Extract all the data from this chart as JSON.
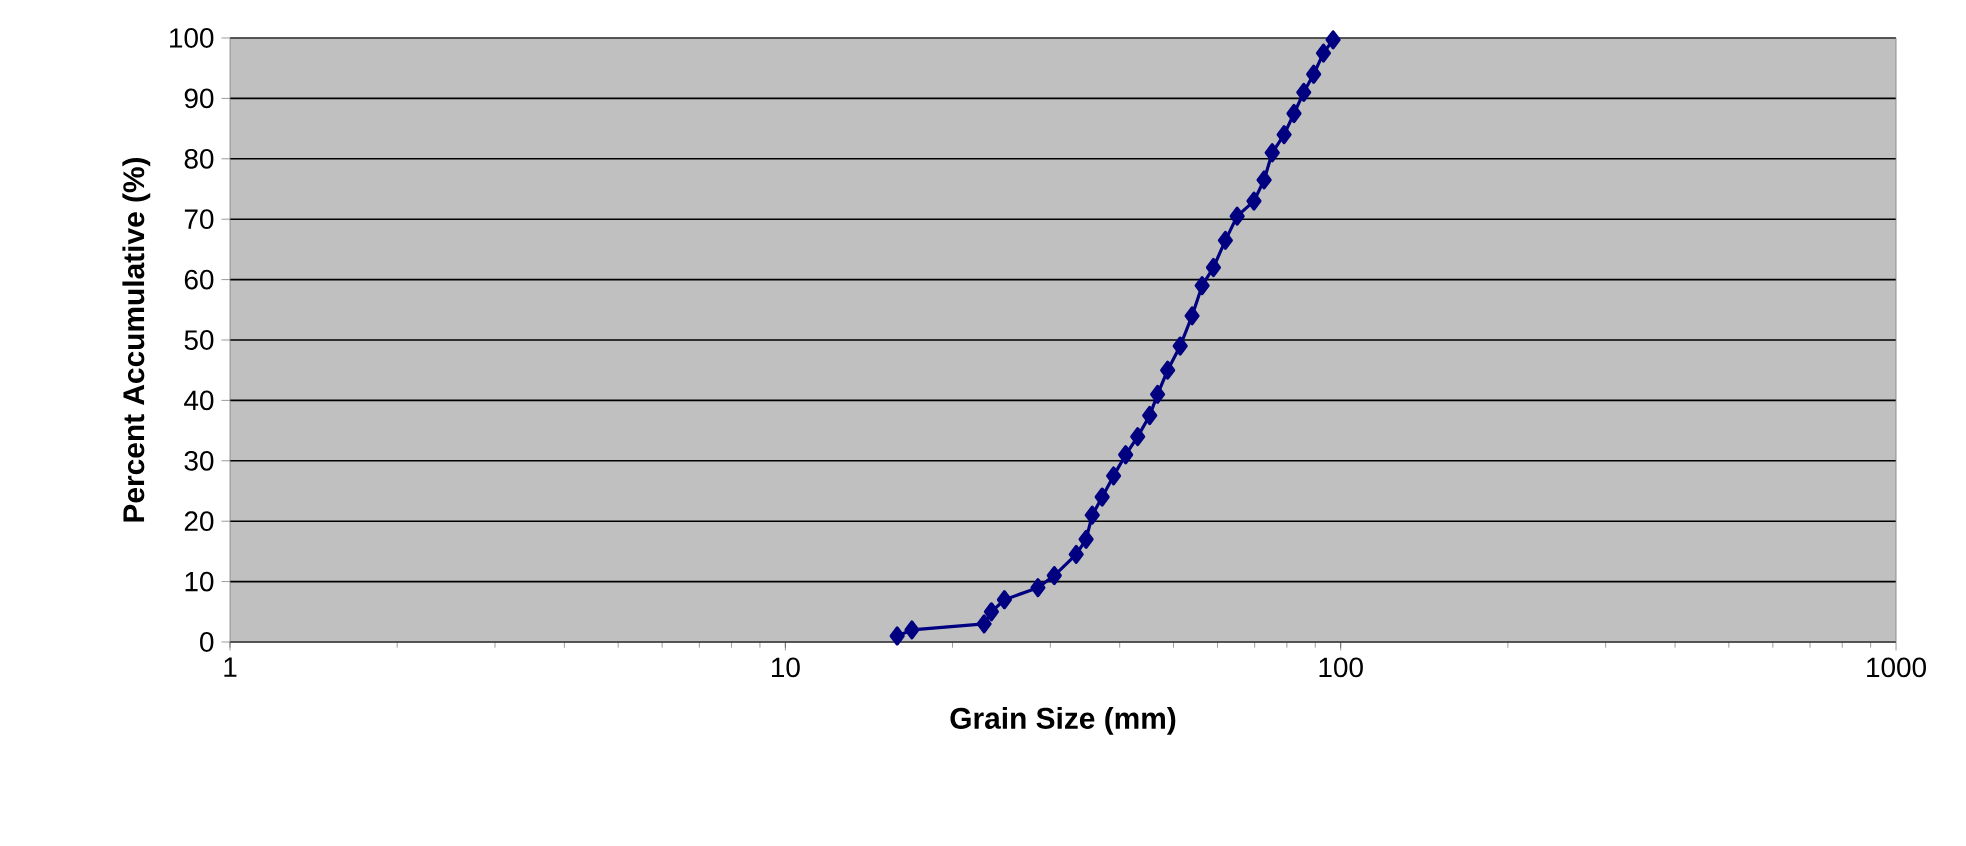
{
  "chart_data": {
    "type": "line",
    "xlabel": "Grain Size (mm)",
    "ylabel": "Percent Accumulative (%)",
    "series": [
      {
        "color": "#000080",
        "x": [
          15.9,
          16.9,
          22.8,
          23.5,
          24.8,
          28.5,
          30.5,
          33.4,
          34.8,
          35.7,
          37.2,
          39.0,
          41.0,
          43.1,
          45.3,
          46.8,
          48.8,
          51.4,
          54.0,
          56.3,
          59.0,
          62.0,
          65.1,
          69.8,
          72.8,
          75.3,
          79.1,
          82.4,
          85.8,
          89.4,
          93.1,
          96.9
        ],
        "values": [
          1,
          2,
          3,
          5,
          7,
          9,
          11,
          14.5,
          17,
          21,
          24,
          27.5,
          31,
          34,
          37.5,
          41,
          45,
          49,
          54,
          59,
          62,
          66.5,
          70.5,
          73,
          76.5,
          81,
          84,
          87.5,
          91,
          94,
          97.5,
          99.7
        ]
      }
    ],
    "log": "x",
    "xlim": [
      1,
      1000
    ],
    "xticks": [
      1,
      10,
      100,
      1000
    ],
    "ylim": [
      0,
      100
    ],
    "yticks": [
      0,
      10,
      20,
      30,
      40,
      50,
      60,
      70,
      80,
      90,
      100
    ],
    "grid": "y",
    "marker": "diamond",
    "line_style": "solid"
  }
}
